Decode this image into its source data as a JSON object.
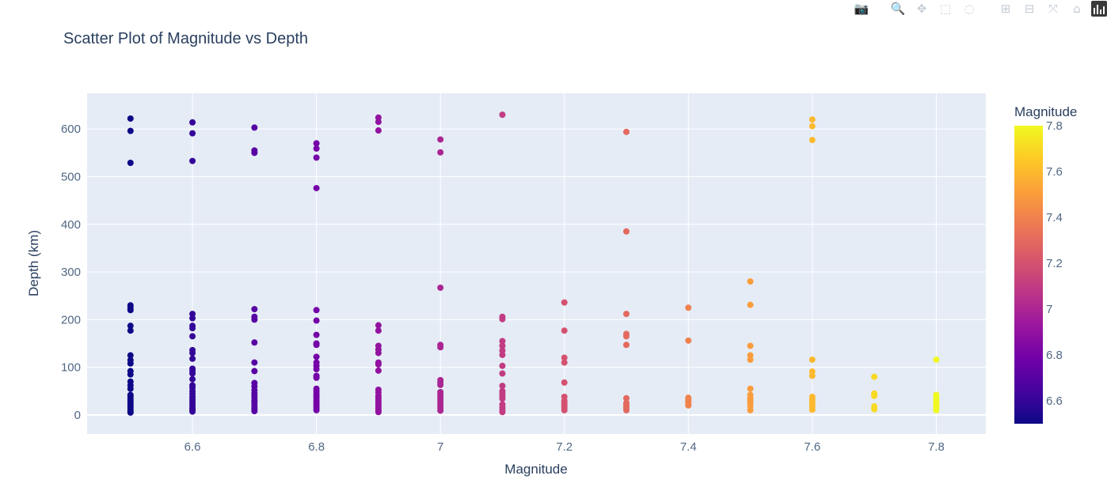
{
  "toolbar": {
    "buttons": [
      {
        "name": "camera-icon",
        "glyph": "📷"
      },
      {
        "name": "zoom-icon",
        "glyph": "🔍"
      },
      {
        "name": "pan-icon",
        "glyph": "✥"
      },
      {
        "name": "box-select-icon",
        "glyph": "⬚"
      },
      {
        "name": "lasso-select-icon",
        "glyph": "◌"
      },
      {
        "name": "zoom-in-icon",
        "glyph": "⊞"
      },
      {
        "name": "zoom-out-icon",
        "glyph": "⊟"
      },
      {
        "name": "autoscale-icon",
        "glyph": "⤧"
      },
      {
        "name": "reset-axes-icon",
        "glyph": "⌂"
      }
    ],
    "logo": "plotly-logo-icon"
  },
  "chart_data": {
    "type": "scatter",
    "title": "Scatter Plot of Magnitude vs Depth",
    "xlabel": "Magnitude",
    "ylabel": "Depth (km)",
    "xlim": [
      6.43,
      7.88
    ],
    "ylim": [
      -40,
      675
    ],
    "xticks": [
      6.6,
      6.8,
      7,
      7.2,
      7.4,
      7.6,
      7.8
    ],
    "xtick_labels": [
      "6.6",
      "6.8",
      "7",
      "7.2",
      "7.4",
      "7.6",
      "7.8"
    ],
    "yticks": [
      0,
      100,
      200,
      300,
      400,
      500,
      600
    ],
    "ytick_labels": [
      "0",
      "100",
      "200",
      "300",
      "400",
      "500",
      "600"
    ],
    "grid": true,
    "plot_background": "#e5ecf6",
    "colorbar": {
      "title": "Magnitude",
      "range": [
        6.5,
        7.8
      ],
      "ticks": [
        6.6,
        6.8,
        7,
        7.2,
        7.4,
        7.6,
        7.8
      ],
      "tick_labels": [
        "6.6",
        "6.8",
        "7",
        "7.2",
        "7.4",
        "7.6",
        "7.8"
      ],
      "colorscale": [
        "#0d0887",
        "#46039f",
        "#7201a8",
        "#9c179e",
        "#bd3786",
        "#d8576b",
        "#ed7953",
        "#fb9f3a",
        "#fdca26",
        "#f0f921"
      ]
    },
    "points": [
      {
        "magnitude": 6.5,
        "depths": [
          622,
          596,
          529,
          230,
          225,
          220,
          187,
          177,
          125,
          115,
          108,
          92,
          85,
          70,
          62,
          55,
          42,
          38,
          33,
          28,
          24,
          20,
          16,
          12,
          8,
          5
        ]
      },
      {
        "magnitude": 6.6,
        "depths": [
          614,
          591,
          533,
          212,
          203,
          187,
          182,
          165,
          136,
          130,
          118,
          97,
          92,
          87,
          75,
          62,
          57,
          50,
          44,
          38,
          33,
          28,
          23,
          18,
          14,
          10,
          7
        ]
      },
      {
        "magnitude": 6.7,
        "depths": [
          603,
          555,
          550,
          222,
          206,
          200,
          152,
          110,
          92,
          67,
          60,
          52,
          46,
          41,
          36,
          30,
          26,
          21,
          16,
          12,
          8
        ]
      },
      {
        "magnitude": 6.8,
        "depths": [
          570,
          559,
          540,
          476,
          220,
          198,
          168,
          150,
          147,
          122,
          110,
          103,
          96,
          82,
          78,
          55,
          50,
          45,
          40,
          35,
          30,
          25,
          20,
          15,
          10
        ]
      },
      {
        "magnitude": 6.9,
        "depths": [
          624,
          615,
          597,
          188,
          177,
          145,
          137,
          130,
          110,
          106,
          93,
          53,
          47,
          40,
          35,
          30,
          25,
          20,
          15,
          10,
          6
        ]
      },
      {
        "magnitude": 7.0,
        "depths": [
          578,
          551,
          267,
          147,
          142,
          73,
          68,
          63,
          48,
          44,
          38,
          33,
          28,
          23,
          18,
          14,
          9
        ]
      },
      {
        "magnitude": 7.1,
        "depths": [
          630,
          206,
          201,
          155,
          145,
          135,
          126,
          103,
          87,
          61,
          50,
          45,
          40,
          34,
          22,
          16,
          11,
          6
        ]
      },
      {
        "magnitude": 7.2,
        "depths": [
          236,
          177,
          120,
          110,
          68,
          38,
          30,
          25,
          20,
          15,
          10
        ]
      },
      {
        "magnitude": 7.3,
        "depths": [
          594,
          385,
          212,
          170,
          165,
          147,
          35,
          25,
          20,
          15,
          10
        ]
      },
      {
        "magnitude": 7.4,
        "depths": [
          225,
          156,
          36,
          32,
          28,
          24,
          20
        ]
      },
      {
        "magnitude": 7.5,
        "depths": [
          280,
          231,
          145,
          125,
          116,
          55,
          42,
          35,
          30,
          25,
          18,
          10
        ]
      },
      {
        "magnitude": 7.6,
        "depths": [
          620,
          606,
          577,
          116,
          91,
          82,
          38,
          33,
          28,
          22,
          17,
          11
        ]
      },
      {
        "magnitude": 7.7,
        "depths": [
          80,
          45,
          40,
          18,
          12
        ]
      },
      {
        "magnitude": 7.8,
        "depths": [
          116,
          42,
          36,
          30,
          25,
          20,
          15,
          10
        ]
      }
    ]
  }
}
